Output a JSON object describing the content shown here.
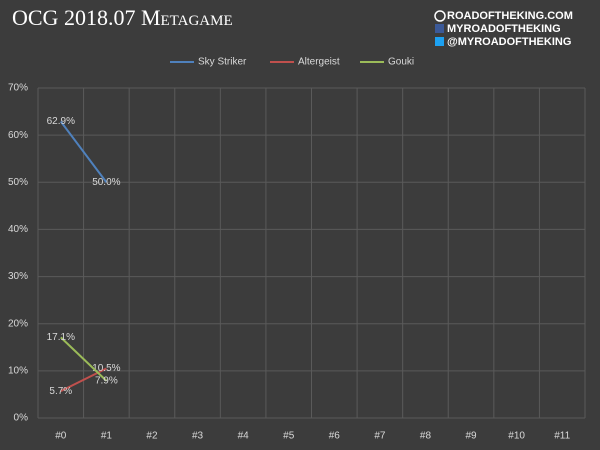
{
  "chart_data": {
    "type": "line",
    "title": "OCG 2018.07 Metagame",
    "categories": [
      "#0",
      "#1",
      "#2",
      "#3",
      "#4",
      "#5",
      "#6",
      "#7",
      "#8",
      "#9",
      "#10",
      "#11"
    ],
    "series": [
      {
        "name": "Sky Striker",
        "color": "#4f81bd",
        "values": [
          62.9,
          50.0,
          null,
          null,
          null,
          null,
          null,
          null,
          null,
          null,
          null,
          null
        ],
        "value_labels": [
          "62.9%",
          "50.0%",
          null,
          null,
          null,
          null,
          null,
          null,
          null,
          null,
          null,
          null
        ]
      },
      {
        "name": "Altergeist",
        "color": "#c0504d",
        "values": [
          5.7,
          10.5,
          null,
          null,
          null,
          null,
          null,
          null,
          null,
          null,
          null,
          null
        ],
        "value_labels": [
          "5.7%",
          "10.5%",
          null,
          null,
          null,
          null,
          null,
          null,
          null,
          null,
          null,
          null
        ]
      },
      {
        "name": "Gouki",
        "color": "#9bbb59",
        "values": [
          17.1,
          7.9,
          null,
          null,
          null,
          null,
          null,
          null,
          null,
          null,
          null,
          null
        ],
        "value_labels": [
          "17.1%",
          "7.9%",
          null,
          null,
          null,
          null,
          null,
          null,
          null,
          null,
          null,
          null
        ]
      }
    ],
    "ylim": [
      0,
      70
    ],
    "yticks": [
      {
        "value": 0,
        "label": "0%"
      },
      {
        "value": 10,
        "label": "10%"
      },
      {
        "value": 20,
        "label": "20%"
      },
      {
        "value": 30,
        "label": "30%"
      },
      {
        "value": 40,
        "label": "40%"
      },
      {
        "value": 50,
        "label": "50%"
      },
      {
        "value": 60,
        "label": "60%"
      },
      {
        "value": 70,
        "label": "70%"
      }
    ],
    "grid": true,
    "legend": "top"
  },
  "watermark": [
    "ROADOFTHEKING.COM",
    "MYROADOFTHEKING",
    "@MYROADOFTHEKING"
  ]
}
